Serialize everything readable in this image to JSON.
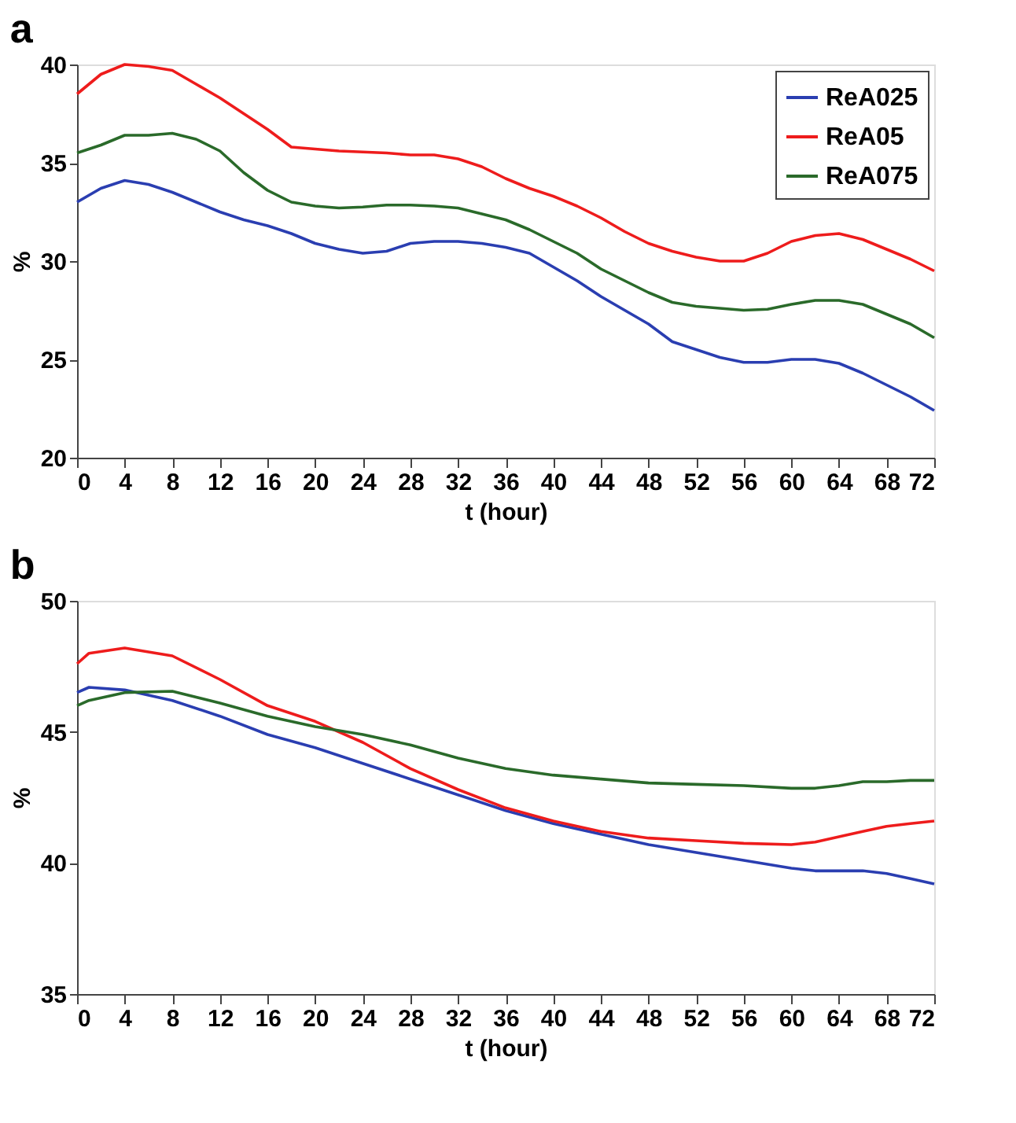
{
  "chart_data": [
    {
      "type": "line",
      "title": "a",
      "xlabel": "t (hour)",
      "ylabel": "%",
      "xlim": [
        0,
        72
      ],
      "ylim": [
        20,
        40
      ],
      "xticks": [
        0,
        4,
        8,
        12,
        16,
        20,
        24,
        28,
        32,
        36,
        40,
        44,
        48,
        52,
        56,
        60,
        64,
        68,
        72
      ],
      "yticks": [
        20,
        25,
        30,
        35,
        40
      ],
      "grid": false,
      "legend": "top right",
      "marker": "none",
      "line_style": "solid",
      "x": [
        0,
        2,
        4,
        6,
        8,
        10,
        12,
        14,
        16,
        18,
        20,
        22,
        24,
        26,
        28,
        30,
        32,
        34,
        36,
        38,
        40,
        42,
        44,
        46,
        48,
        50,
        52,
        54,
        56,
        58,
        60,
        62,
        64,
        66,
        68,
        70,
        72
      ],
      "series": [
        {
          "name": "ReA025",
          "color": "#2a3eb1",
          "values": [
            33.0,
            33.7,
            34.1,
            33.9,
            33.5,
            33.0,
            32.5,
            32.1,
            31.8,
            31.4,
            30.9,
            30.6,
            30.4,
            30.5,
            30.9,
            31.0,
            31.0,
            30.9,
            30.7,
            30.4,
            29.7,
            29.0,
            28.2,
            27.5,
            26.8,
            25.9,
            25.5,
            25.1,
            24.85,
            24.85,
            25.0,
            25.0,
            24.8,
            24.3,
            23.7,
            23.1,
            22.4
          ]
        },
        {
          "name": "ReA05",
          "color": "#ee1c1c",
          "values": [
            38.5,
            39.5,
            40.0,
            39.9,
            39.7,
            39.0,
            38.3,
            37.5,
            36.7,
            35.8,
            35.7,
            35.6,
            35.55,
            35.5,
            35.4,
            35.4,
            35.2,
            34.8,
            34.2,
            33.7,
            33.3,
            32.8,
            32.2,
            31.5,
            30.9,
            30.5,
            30.2,
            30.0,
            30.0,
            30.4,
            31.0,
            31.3,
            31.4,
            31.1,
            30.6,
            30.1,
            29.5
          ]
        },
        {
          "name": "ReA075",
          "color": "#2a6a2a",
          "values": [
            35.5,
            35.9,
            36.4,
            36.4,
            36.5,
            36.2,
            35.6,
            34.5,
            33.6,
            33.0,
            32.8,
            32.7,
            32.75,
            32.85,
            32.85,
            32.8,
            32.7,
            32.4,
            32.1,
            31.6,
            31.0,
            30.4,
            29.6,
            29.0,
            28.4,
            27.9,
            27.7,
            27.6,
            27.5,
            27.55,
            27.8,
            28.0,
            28.0,
            27.8,
            27.3,
            26.8,
            26.1
          ]
        }
      ]
    },
    {
      "type": "line",
      "title": "b",
      "xlabel": "t (hour)",
      "ylabel": "%",
      "xlim": [
        0,
        72
      ],
      "ylim": [
        35,
        50
      ],
      "xticks": [
        0,
        4,
        8,
        12,
        16,
        20,
        24,
        28,
        32,
        36,
        40,
        44,
        48,
        52,
        56,
        60,
        64,
        68,
        72
      ],
      "yticks": [
        35,
        40,
        45,
        50
      ],
      "grid": false,
      "marker": "none",
      "line_style": "solid",
      "x": [
        0,
        1,
        4,
        8,
        12,
        16,
        20,
        24,
        28,
        32,
        36,
        40,
        44,
        48,
        52,
        56,
        60,
        62,
        64,
        66,
        68,
        70,
        72
      ],
      "series": [
        {
          "color": "#2a3eb1",
          "values": [
            46.5,
            46.7,
            46.6,
            46.2,
            45.6,
            44.9,
            44.4,
            43.8,
            43.2,
            42.6,
            42.0,
            41.5,
            41.1,
            40.7,
            40.4,
            40.1,
            39.8,
            39.7,
            39.7,
            39.7,
            39.6,
            39.4,
            39.2
          ]
        },
        {
          "color": "#ee1c1c",
          "values": [
            47.6,
            48.0,
            48.2,
            47.9,
            47.0,
            46.0,
            45.4,
            44.6,
            43.6,
            42.8,
            42.1,
            41.6,
            41.2,
            40.95,
            40.85,
            40.75,
            40.7,
            40.8,
            41.0,
            41.2,
            41.4,
            41.5,
            41.6
          ]
        },
        {
          "color": "#2a6a2a",
          "values": [
            46.0,
            46.2,
            46.5,
            46.55,
            46.1,
            45.6,
            45.2,
            44.9,
            44.5,
            44.0,
            43.6,
            43.35,
            43.2,
            43.05,
            43.0,
            42.95,
            42.85,
            42.85,
            42.95,
            43.1,
            43.1,
            43.15,
            43.15
          ]
        }
      ]
    }
  ]
}
